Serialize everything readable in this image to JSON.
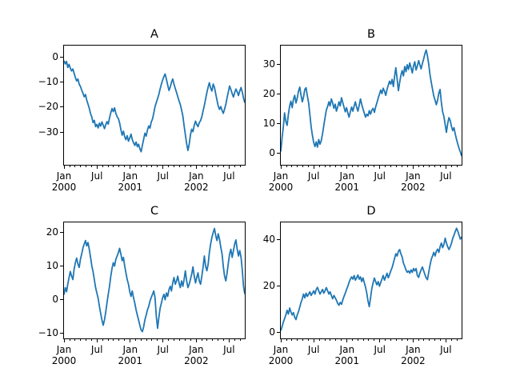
{
  "figure": {
    "background": "#ffffff",
    "line_color": "#1f77b4",
    "axes_color": "#000000",
    "subplot_titles": [
      "A",
      "B",
      "C",
      "D"
    ]
  },
  "chart_data": {
    "type": "line",
    "layout": "2x2 subplots, shared date x-axis style, no grid, no legend",
    "x_axis": {
      "xlim_days": [
        0,
        999
      ],
      "range_label": "Jan 2000 - Sep 2002",
      "major_ticks": [
        {
          "day": 0,
          "label": "Jan",
          "year": "2000"
        },
        {
          "day": 182,
          "label": "Jul",
          "year": ""
        },
        {
          "day": 366,
          "label": "Jan",
          "year": "2001"
        },
        {
          "day": 547,
          "label": "Jul",
          "year": ""
        },
        {
          "day": 731,
          "label": "Jan",
          "year": "2002"
        },
        {
          "day": 912,
          "label": "Jul",
          "year": ""
        }
      ],
      "minor_tick_days": [
        31,
        60,
        91,
        121,
        152,
        213,
        244,
        274,
        305,
        335,
        397,
        425,
        456,
        486,
        517,
        578,
        609,
        639,
        670,
        700,
        762,
        790,
        821,
        851,
        882,
        943,
        974
      ]
    },
    "subplots": [
      {
        "id": "A",
        "title": "A",
        "ylim": [
          -43,
          4.5
        ],
        "yticks": [
          {
            "v": 0,
            "label": "0"
          },
          {
            "v": -10,
            "label": "−10"
          },
          {
            "v": -20,
            "label": "−20"
          },
          {
            "v": -30,
            "label": "−30"
          }
        ],
        "values": [
          -1.5,
          -2.8,
          -1.8,
          -4.2,
          -3.0,
          -4.5,
          -5.6,
          -4.8,
          -6.5,
          -8.2,
          -9.6,
          -8.8,
          -10.9,
          -11.8,
          -13.2,
          -14.5,
          -15.9,
          -15.0,
          -17.2,
          -18.8,
          -20.5,
          -22.6,
          -24.0,
          -26.2,
          -25.3,
          -27.8,
          -26.9,
          -28.3,
          -26.4,
          -27.6,
          -25.9,
          -27.2,
          -28.6,
          -27.0,
          -25.8,
          -26.8,
          -24.3,
          -22.2,
          -20.6,
          -21.8,
          -20.3,
          -22.5,
          -23.8,
          -24.6,
          -26.3,
          -29.0,
          -31.2,
          -29.6,
          -31.8,
          -33.0,
          -31.4,
          -33.6,
          -32.3,
          -30.8,
          -32.9,
          -34.2,
          -35.3,
          -33.9,
          -35.8,
          -34.8,
          -36.6,
          -37.8,
          -35.2,
          -32.8,
          -30.4,
          -31.6,
          -29.2,
          -27.5,
          -28.4,
          -26.0,
          -24.8,
          -22.4,
          -19.8,
          -18.2,
          -16.6,
          -15.0,
          -12.8,
          -10.9,
          -9.2,
          -7.8,
          -6.8,
          -8.9,
          -11.2,
          -13.4,
          -12.0,
          -10.2,
          -8.8,
          -10.9,
          -12.6,
          -14.2,
          -15.8,
          -17.5,
          -19.0,
          -21.2,
          -23.6,
          -27.4,
          -31.0,
          -34.6,
          -37.3,
          -34.8,
          -31.2,
          -28.8,
          -29.8,
          -27.3,
          -25.6,
          -26.9,
          -27.8,
          -26.2,
          -25.4,
          -23.8,
          -21.6,
          -19.4,
          -16.8,
          -14.2,
          -12.0,
          -10.3,
          -12.4,
          -13.6,
          -10.8,
          -12.2,
          -14.8,
          -17.2,
          -19.6,
          -20.9,
          -19.8,
          -21.4,
          -22.5,
          -20.8,
          -18.9,
          -16.2,
          -13.8,
          -11.6,
          -13.0,
          -14.6,
          -16.0,
          -14.2,
          -12.8,
          -13.9,
          -15.4,
          -13.6,
          -12.2,
          -14.0,
          -16.4,
          -18.3
        ]
      },
      {
        "id": "B",
        "title": "B",
        "ylim": [
          -4,
          36.5
        ],
        "yticks": [
          {
            "v": 30,
            "label": "30"
          },
          {
            "v": 20,
            "label": "20"
          },
          {
            "v": 10,
            "label": "10"
          },
          {
            "v": 0,
            "label": "0"
          }
        ],
        "values": [
          0.5,
          5.2,
          9.0,
          13.6,
          10.8,
          9.4,
          13.2,
          16.0,
          17.6,
          15.4,
          18.2,
          19.6,
          17.0,
          18.6,
          21.0,
          22.4,
          19.6,
          17.4,
          19.0,
          21.6,
          22.2,
          19.4,
          17.0,
          13.2,
          9.0,
          6.0,
          3.6,
          2.2,
          3.8,
          2.0,
          4.6,
          3.0,
          4.2,
          6.6,
          9.2,
          12.0,
          14.6,
          15.8,
          17.4,
          16.0,
          18.4,
          17.0,
          15.2,
          16.6,
          14.2,
          15.6,
          17.4,
          16.0,
          18.8,
          17.2,
          15.6,
          14.0,
          15.4,
          13.6,
          12.2,
          14.0,
          15.6,
          14.2,
          16.0,
          17.4,
          15.6,
          14.2,
          16.2,
          18.4,
          16.6,
          15.0,
          13.6,
          12.2,
          13.2,
          12.6,
          14.4,
          13.2,
          14.6,
          15.2,
          13.8,
          15.6,
          17.0,
          18.6,
          20.0,
          21.4,
          20.2,
          22.0,
          21.0,
          19.6,
          21.6,
          23.0,
          24.4,
          23.4,
          25.0,
          22.6,
          26.0,
          29.0,
          25.2,
          21.2,
          24.0,
          26.4,
          28.0,
          26.2,
          29.4,
          27.6,
          30.0,
          28.4,
          30.6,
          29.0,
          27.2,
          29.6,
          31.0,
          28.2,
          29.6,
          31.4,
          30.0,
          28.6,
          30.4,
          32.0,
          33.8,
          35.0,
          33.0,
          30.2,
          26.6,
          24.0,
          21.6,
          19.4,
          18.0,
          16.4,
          18.0,
          20.4,
          21.6,
          17.2,
          14.0,
          12.4,
          9.6,
          7.0,
          10.0,
          12.0,
          11.0,
          9.0,
          7.6,
          8.6,
          6.4,
          4.6,
          3.0,
          1.6,
          0.4,
          -1.0
        ]
      },
      {
        "id": "C",
        "title": "C",
        "ylim": [
          -11.5,
          23
        ],
        "yticks": [
          {
            "v": 20,
            "label": "20"
          },
          {
            "v": 10,
            "label": "10"
          },
          {
            "v": 0,
            "label": "0"
          },
          {
            "v": -10,
            "label": "−10"
          }
        ],
        "values": [
          1.5,
          3.6,
          2.4,
          4.6,
          6.6,
          8.4,
          7.0,
          6.0,
          9.0,
          11.0,
          12.4,
          10.6,
          9.6,
          12.0,
          13.6,
          15.4,
          16.6,
          17.6,
          16.0,
          17.0,
          15.0,
          12.6,
          10.0,
          8.4,
          6.0,
          3.6,
          2.0,
          0.4,
          -2.0,
          -4.0,
          -6.0,
          -7.6,
          -6.0,
          -3.6,
          -1.0,
          1.6,
          4.0,
          7.0,
          9.4,
          11.0,
          10.0,
          12.0,
          13.0,
          14.0,
          15.3,
          13.6,
          11.6,
          12.6,
          10.0,
          8.0,
          6.0,
          4.6,
          2.4,
          1.0,
          2.6,
          0.6,
          -1.0,
          -3.0,
          -4.6,
          -6.0,
          -7.6,
          -9.0,
          -9.5,
          -8.0,
          -6.0,
          -4.6,
          -3.0,
          -2.0,
          -0.4,
          0.6,
          1.6,
          2.6,
          0.6,
          -5.0,
          -8.5,
          -5.4,
          -2.6,
          -1.0,
          0.6,
          1.6,
          0.0,
          2.0,
          1.0,
          3.0,
          4.0,
          2.6,
          5.0,
          6.6,
          4.6,
          5.6,
          7.0,
          5.0,
          3.6,
          5.6,
          4.0,
          6.0,
          8.6,
          5.6,
          3.6,
          4.6,
          6.0,
          7.6,
          9.8,
          7.0,
          5.0,
          6.6,
          8.0,
          5.6,
          4.6,
          7.0,
          9.6,
          13.0,
          10.0,
          8.6,
          10.6,
          14.0,
          16.6,
          18.6,
          20.0,
          21.2,
          19.0,
          17.6,
          19.6,
          18.0,
          15.6,
          13.6,
          10.0,
          7.0,
          5.6,
          8.0,
          11.0,
          13.6,
          15.0,
          12.6,
          14.6,
          16.6,
          17.8,
          15.0,
          13.0,
          14.6,
          12.6,
          9.0,
          4.0,
          1.7
        ]
      },
      {
        "id": "D",
        "title": "D",
        "ylim": [
          -2.5,
          47.5
        ],
        "yticks": [
          {
            "v": 40,
            "label": "40"
          },
          {
            "v": 20,
            "label": "20"
          },
          {
            "v": 0,
            "label": "0"
          }
        ],
        "values": [
          0.8,
          2.6,
          4.6,
          6.0,
          7.6,
          9.6,
          8.0,
          10.6,
          9.0,
          7.6,
          8.6,
          6.6,
          5.6,
          7.6,
          9.0,
          11.0,
          13.0,
          14.6,
          16.6,
          15.0,
          17.0,
          15.6,
          16.6,
          17.6,
          16.0,
          17.0,
          18.0,
          16.6,
          18.6,
          19.5,
          18.0,
          16.6,
          17.6,
          18.6,
          17.0,
          18.0,
          19.4,
          18.0,
          16.6,
          17.6,
          16.0,
          14.6,
          16.0,
          15.0,
          14.0,
          12.6,
          11.8,
          13.0,
          12.2,
          14.0,
          15.6,
          17.0,
          18.6,
          20.0,
          21.6,
          23.0,
          24.0,
          23.0,
          24.6,
          22.6,
          23.6,
          24.8,
          23.0,
          24.0,
          22.0,
          23.6,
          21.6,
          19.6,
          17.0,
          13.6,
          11.2,
          15.0,
          19.0,
          21.5,
          23.5,
          22.0,
          20.6,
          22.0,
          20.0,
          21.6,
          23.0,
          24.6,
          22.6,
          24.0,
          25.6,
          23.6,
          25.0,
          26.6,
          28.0,
          30.0,
          32.0,
          34.0,
          33.0,
          35.0,
          35.8,
          34.0,
          32.6,
          30.0,
          28.6,
          27.0,
          26.0,
          26.6,
          25.6,
          27.0,
          26.0,
          27.6,
          26.6,
          27.6,
          24.6,
          23.8,
          25.6,
          27.0,
          28.3,
          26.6,
          25.0,
          23.6,
          22.8,
          26.0,
          29.0,
          31.6,
          33.0,
          34.6,
          33.0,
          35.0,
          36.0,
          34.6,
          37.0,
          38.6,
          36.6,
          38.0,
          40.7,
          38.6,
          37.0,
          35.8,
          37.0,
          38.6,
          40.6,
          42.0,
          43.6,
          45.0,
          43.6,
          42.0,
          40.3,
          41.3
        ]
      }
    ]
  }
}
